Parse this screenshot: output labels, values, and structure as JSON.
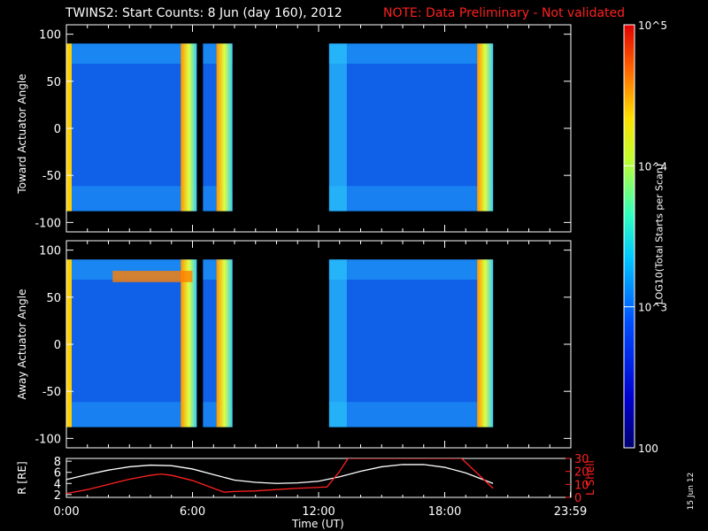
{
  "title": "TWINS2: Start Counts:  8 Jun (day 160), 2012",
  "note": "NOTE: Data Preliminary - Not validated",
  "date_stamp": "15 Jun 12",
  "colorbar": {
    "label": "LOG10(Total Starts per Scan)",
    "ticks": [
      "100",
      "10^3",
      "10^4",
      "10^5"
    ],
    "range": [
      100,
      100000
    ],
    "scale": "log"
  },
  "chart_data": [
    {
      "type": "heatmap",
      "name": "toward",
      "ylabel": "Toward Actuator Angle",
      "ylim": [
        -110,
        110
      ],
      "yticks": [
        -100,
        -50,
        0,
        50,
        100
      ],
      "xlim": [
        0,
        24
      ],
      "grid": false,
      "y_extent": [
        -88,
        90
      ],
      "data_blocks": [
        [
          0,
          6.2
        ],
        [
          6.5,
          7.9
        ],
        [
          12.5,
          20.3
        ]
      ]
    },
    {
      "type": "heatmap",
      "name": "away",
      "ylabel": "Away Actuator Angle",
      "ylim": [
        -110,
        110
      ],
      "yticks": [
        -100,
        -50,
        0,
        50,
        100
      ],
      "xlim": [
        0,
        24
      ],
      "grid": false,
      "y_extent": [
        -88,
        90
      ],
      "data_blocks": [
        [
          0,
          6.2
        ],
        [
          6.5,
          7.9
        ],
        [
          12.5,
          20.3
        ]
      ]
    },
    {
      "type": "line",
      "name": "orbit",
      "xlabel": "Time (UT)",
      "xticks": [
        "0:00",
        "6:00",
        "12:00",
        "18:00",
        "23:59"
      ],
      "xtick_hours": [
        0,
        6,
        12,
        18,
        23.98
      ],
      "xlim": [
        0,
        24
      ],
      "ylabel_left": "R [RE]",
      "yticks_left": [
        2,
        4,
        6,
        8
      ],
      "ylim_left": [
        1.5,
        8.5
      ],
      "ylabel_right": "L Shell",
      "yticks_right": [
        0,
        10,
        20,
        30
      ],
      "ylim_right": [
        0,
        30
      ],
      "series": [
        {
          "name": "R",
          "color": "#ffffff",
          "x": [
            0,
            1,
            2,
            3,
            4,
            5,
            6,
            7,
            8,
            9,
            10,
            11,
            12,
            13,
            14,
            15,
            16,
            17,
            18,
            19,
            20.3
          ],
          "y": [
            4.7,
            5.6,
            6.4,
            7.0,
            7.3,
            7.2,
            6.6,
            5.6,
            4.6,
            4.2,
            4.0,
            4.1,
            4.4,
            5.2,
            6.2,
            7.0,
            7.4,
            7.4,
            6.9,
            5.9,
            4.0
          ]
        },
        {
          "name": "L",
          "color": "#ff2020",
          "x": [
            0,
            1,
            2,
            3,
            4,
            4.5,
            5,
            6,
            7,
            7.5,
            8,
            9,
            10,
            11,
            12.4,
            13,
            13.4,
            18.8,
            20.3
          ],
          "y": [
            3,
            6,
            10,
            14,
            17,
            18,
            17,
            13,
            7,
            4,
            4.5,
            5,
            6,
            7,
            8,
            20,
            30,
            30,
            7
          ]
        }
      ]
    }
  ]
}
